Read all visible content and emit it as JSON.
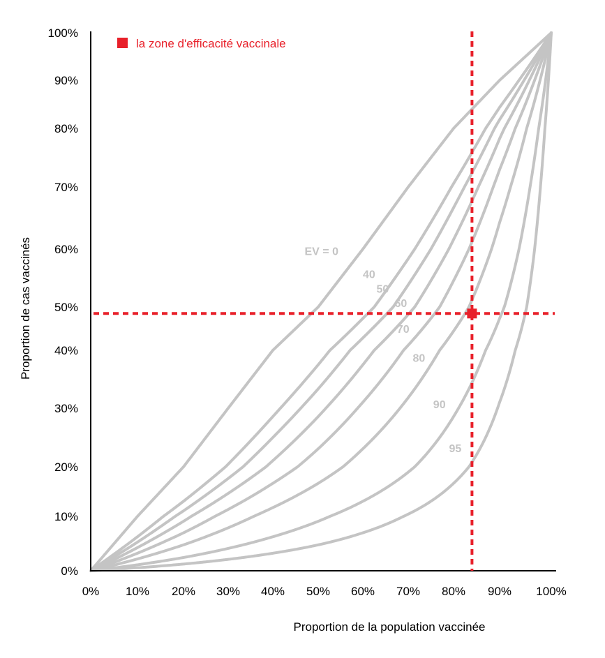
{
  "chart_data": {
    "type": "line",
    "xlabel": "Proportion de la population vaccinée",
    "ylabel": "Proportion de cas vaccinés",
    "xlim": [
      0,
      100
    ],
    "ylim": [
      0,
      100
    ],
    "x_tick_labels": [
      "0%",
      "10%",
      "20%",
      "30%",
      "40%",
      "50%",
      "60%",
      "70%",
      "80%",
      "90%",
      "100%"
    ],
    "y_tick_labels": [
      "0%",
      "10%",
      "20%",
      "30%",
      "40%",
      "50%",
      "60%",
      "70%",
      "80%",
      "90%",
      "100%"
    ],
    "series": [
      {
        "name": "EV = 0",
        "ve": 0,
        "label": "EV = 0",
        "label_at": [
          47,
          59
        ]
      },
      {
        "name": "40",
        "ve": 40,
        "label": "40",
        "label_at": [
          60,
          55
        ]
      },
      {
        "name": "50",
        "ve": 50,
        "label": "50",
        "label_at": [
          63,
          52.5
        ]
      },
      {
        "name": "60",
        "ve": 60,
        "label": "60",
        "label_at": [
          67,
          50
        ]
      },
      {
        "name": "70",
        "ve": 70,
        "label": "70",
        "label_at": [
          67.5,
          44
        ]
      },
      {
        "name": "80",
        "ve": 80,
        "label": "80",
        "label_at": [
          71,
          38
        ]
      },
      {
        "name": "90",
        "ve": 90,
        "label": "90",
        "label_at": [
          75.5,
          30
        ]
      },
      {
        "name": "95",
        "ve": 95,
        "label": "95",
        "label_at": [
          79,
          22.5
        ]
      }
    ],
    "reference_point": {
      "x": 84,
      "y": 48.5
    },
    "legend": {
      "label": "la zone d'efficacité vaccinale",
      "position": "top-left"
    },
    "colors": {
      "curve": "#c4c4c4",
      "highlight": "#e8202a",
      "axis": "#000000"
    }
  }
}
